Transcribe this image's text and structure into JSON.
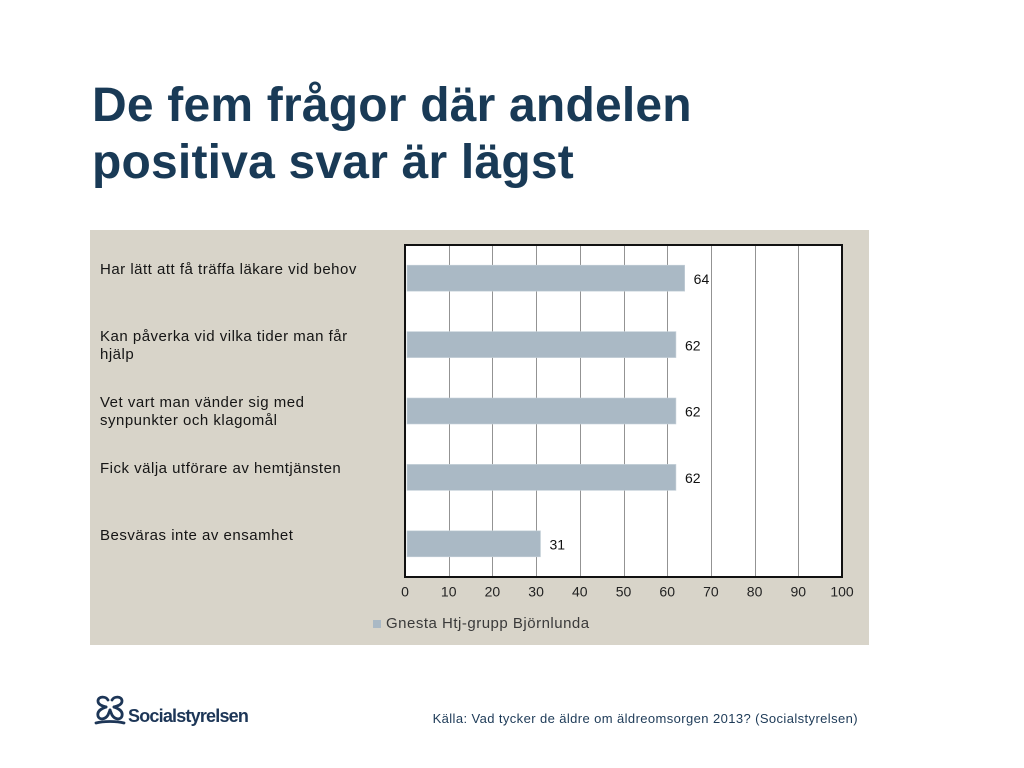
{
  "chart_data": {
    "type": "bar",
    "orientation": "horizontal",
    "title": "De fem frågor där andelen positiva svar är lägst",
    "categories": [
      "Har lätt att få träffa läkare vid behov",
      "Kan påverka vid vilka tider man får hjälp",
      "Vet vart man vänder sig med synpunkter och klagomål",
      "Fick välja utförare av hemtjänsten",
      "Besväras inte av ensamhet"
    ],
    "series": [
      {
        "name": "Gnesta Htj-grupp Björnlunda",
        "values": [
          64,
          62,
          62,
          62,
          31
        ],
        "color": "#aab9c5"
      }
    ],
    "xticks": [
      0,
      10,
      20,
      30,
      40,
      50,
      60,
      70,
      80,
      90,
      100
    ],
    "xlim": [
      0,
      100
    ],
    "grid": true,
    "data_labels": true,
    "legend": "bottom"
  },
  "footer": {
    "logo_text": "Socialstyrelsen",
    "logo_icon": "socialstyrelsen-emblem-icon",
    "source": "Källa: Vad tycker de äldre om äldreomsorgen 2013? (Socialstyrelsen)"
  },
  "colors": {
    "title": "#193a56",
    "panel_background": "#d8d4c9",
    "gridline": "#939393",
    "footer_text": "#1d3a57"
  }
}
